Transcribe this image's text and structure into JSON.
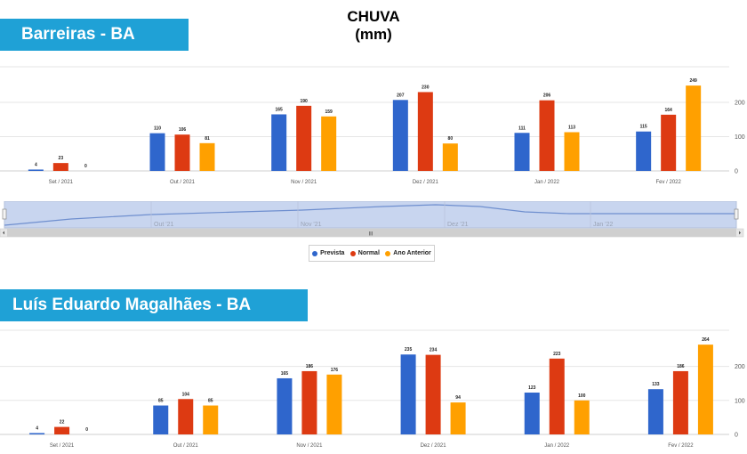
{
  "title": {
    "line1": "CHUVA",
    "line2": "(mm)"
  },
  "colors": {
    "prevista": "#2f66cc",
    "normal": "#dd3a12",
    "ano_anterior": "#ffa000",
    "banner": "#1fa1d6"
  },
  "legend": [
    "Prevista",
    "Normal",
    "Ano Anterior"
  ],
  "navigator": {
    "labels": [
      "Out '21",
      "Nov '21",
      "Dez '21",
      "Jan '22"
    ],
    "handle": "III"
  },
  "chart_data": [
    {
      "type": "bar",
      "banner": "Barreiras - BA",
      "categories": [
        "Set / 2021",
        "Out / 2021",
        "Nov / 2021",
        "Dez / 2021",
        "Jan / 2022",
        "Fev / 2022"
      ],
      "series": [
        {
          "name": "Prevista",
          "values": [
            4,
            110,
            165,
            207,
            111,
            115
          ]
        },
        {
          "name": "Normal",
          "values": [
            23,
            106,
            190,
            230,
            206,
            164
          ]
        },
        {
          "name": "Ano Anterior",
          "values": [
            0,
            81,
            159,
            80,
            113,
            249
          ]
        }
      ],
      "yticks": [
        0,
        100,
        200
      ],
      "ylim": [
        0,
        250
      ],
      "grid": true
    },
    {
      "type": "bar",
      "banner": "Luís Eduardo Magalhães - BA",
      "categories": [
        "Set / 2021",
        "Out / 2021",
        "Nov / 2021",
        "Dez / 2021",
        "Jan / 2022",
        "Fev / 2022"
      ],
      "series": [
        {
          "name": "Prevista",
          "values": [
            4,
            85,
            165,
            235,
            123,
            133
          ]
        },
        {
          "name": "Normal",
          "values": [
            22,
            104,
            186,
            234,
            223,
            186
          ]
        },
        {
          "name": "Ano Anterior",
          "values": [
            0,
            85,
            176,
            94,
            100,
            264
          ]
        }
      ],
      "yticks": [
        0,
        100,
        200
      ],
      "ylim": [
        0,
        270
      ],
      "grid": true
    }
  ]
}
